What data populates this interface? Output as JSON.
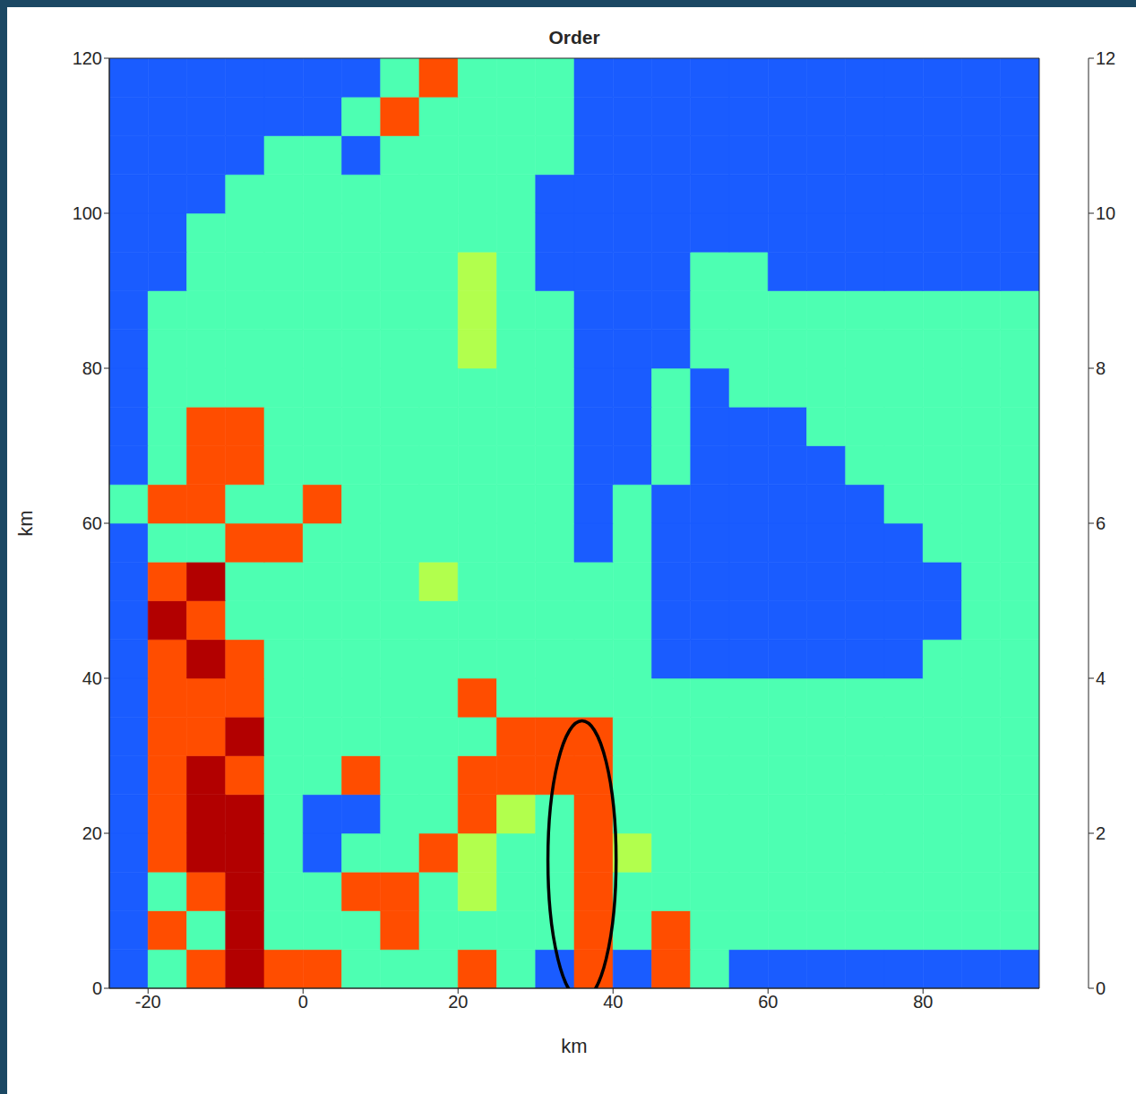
{
  "chart_data": {
    "type": "heatmap",
    "title": "Order",
    "x_label": "km",
    "y_label": "km",
    "xlim": [
      -25,
      95
    ],
    "ylim": [
      0,
      120
    ],
    "xticks": [
      -20,
      0,
      20,
      40,
      60,
      80
    ],
    "yticks": [
      0,
      20,
      40,
      60,
      80,
      100,
      120
    ],
    "x_edges": [
      -25,
      -20,
      -15,
      -10,
      -5,
      0,
      5,
      10,
      15,
      20,
      25,
      30,
      35,
      40,
      45,
      50,
      55,
      60,
      65,
      70,
      75,
      80,
      85,
      90,
      95
    ],
    "y_edges": [
      0,
      5,
      10,
      15,
      20,
      25,
      30,
      35,
      40,
      45,
      50,
      55,
      60,
      65,
      70,
      75,
      80,
      85,
      90,
      95,
      100,
      105,
      110,
      115,
      120
    ],
    "cells": [
      [
        2.5,
        5.5,
        9.5,
        11.5,
        9.5,
        9.5,
        5.5,
        5.5,
        5.5,
        9.5,
        5.5,
        2.5,
        9.5,
        2.5,
        9.5,
        5.5,
        2.5,
        2.5,
        2.5,
        2.5,
        2.5,
        2.5,
        2.5,
        2.5
      ],
      [
        2.5,
        9.5,
        5.5,
        11.5,
        5.5,
        5.5,
        5.5,
        9.5,
        5.5,
        5.5,
        5.5,
        5.5,
        9.5,
        5.5,
        9.5,
        5.5,
        5.5,
        5.5,
        5.5,
        5.5,
        5.5,
        5.5,
        5.5,
        5.5
      ],
      [
        2.5,
        5.5,
        9.5,
        11.5,
        5.5,
        5.5,
        9.5,
        9.5,
        5.5,
        6.5,
        5.5,
        5.5,
        9.5,
        5.5,
        5.5,
        5.5,
        5.5,
        5.5,
        5.5,
        5.5,
        5.5,
        5.5,
        5.5,
        5.5
      ],
      [
        2.5,
        9.5,
        11.5,
        11.5,
        5.5,
        2.5,
        5.5,
        5.5,
        9.5,
        6.5,
        5.5,
        5.5,
        9.5,
        6.5,
        5.5,
        5.5,
        5.5,
        5.5,
        5.5,
        5.5,
        5.5,
        5.5,
        5.5,
        5.5
      ],
      [
        2.5,
        9.5,
        11.5,
        11.5,
        5.5,
        2.5,
        2.5,
        5.5,
        5.5,
        9.5,
        6.5,
        5.5,
        9.5,
        5.5,
        5.5,
        5.5,
        5.5,
        5.5,
        5.5,
        5.5,
        5.5,
        5.5,
        5.5,
        5.5
      ],
      [
        2.5,
        9.5,
        11.5,
        9.5,
        5.5,
        5.5,
        9.5,
        5.5,
        5.5,
        9.5,
        9.5,
        9.5,
        9.5,
        5.5,
        5.5,
        5.5,
        5.5,
        5.5,
        5.5,
        5.5,
        5.5,
        5.5,
        5.5,
        5.5
      ],
      [
        2.5,
        9.5,
        9.5,
        11.5,
        5.5,
        5.5,
        5.5,
        5.5,
        5.5,
        5.5,
        9.5,
        9.5,
        9.5,
        5.5,
        5.5,
        5.5,
        5.5,
        5.5,
        5.5,
        5.5,
        5.5,
        5.5,
        5.5,
        5.5
      ],
      [
        2.5,
        9.5,
        9.5,
        9.5,
        5.5,
        5.5,
        5.5,
        5.5,
        5.5,
        9.5,
        5.5,
        5.5,
        5.5,
        5.5,
        5.5,
        5.5,
        5.5,
        5.5,
        5.5,
        5.5,
        5.5,
        5.5,
        5.5,
        5.5
      ],
      [
        2.5,
        9.5,
        11.5,
        9.5,
        5.5,
        5.5,
        5.5,
        5.5,
        5.5,
        5.5,
        5.5,
        5.5,
        5.5,
        5.5,
        2.5,
        2.5,
        2.5,
        2.5,
        2.5,
        2.5,
        2.5,
        5.5,
        5.5,
        5.5
      ],
      [
        2.5,
        11.5,
        9.5,
        5.5,
        5.5,
        5.5,
        5.5,
        5.5,
        5.5,
        5.5,
        5.5,
        5.5,
        5.5,
        5.5,
        2.5,
        2.5,
        2.5,
        2.5,
        2.5,
        2.5,
        2.5,
        2.5,
        5.5,
        5.5
      ],
      [
        2.5,
        9.5,
        11.5,
        5.5,
        5.5,
        5.5,
        5.5,
        5.5,
        6.5,
        5.5,
        5.5,
        5.5,
        5.5,
        5.5,
        2.5,
        2.5,
        2.5,
        2.5,
        2.5,
        2.5,
        2.5,
        2.5,
        5.5,
        5.5
      ],
      [
        2.5,
        5.5,
        5.5,
        9.5,
        9.5,
        5.5,
        5.5,
        5.5,
        5.5,
        5.5,
        5.5,
        5.5,
        2.5,
        5.5,
        2.5,
        2.5,
        2.5,
        2.5,
        2.5,
        2.5,
        2.5,
        5.5,
        5.5,
        5.5
      ],
      [
        5.5,
        9.5,
        9.5,
        5.5,
        5.5,
        9.5,
        5.5,
        5.5,
        5.5,
        5.5,
        5.5,
        5.5,
        2.5,
        5.5,
        2.5,
        2.5,
        2.5,
        2.5,
        2.5,
        2.5,
        5.5,
        5.5,
        5.5,
        5.5
      ],
      [
        2.5,
        5.5,
        9.5,
        9.5,
        5.5,
        5.5,
        5.5,
        5.5,
        5.5,
        5.5,
        5.5,
        5.5,
        2.5,
        2.5,
        5.5,
        2.5,
        2.5,
        2.5,
        2.5,
        5.5,
        5.5,
        5.5,
        5.5,
        5.5
      ],
      [
        2.5,
        5.5,
        9.5,
        9.5,
        5.5,
        5.5,
        5.5,
        5.5,
        5.5,
        5.5,
        5.5,
        5.5,
        2.5,
        2.5,
        5.5,
        2.5,
        2.5,
        2.5,
        5.5,
        5.5,
        5.5,
        5.5,
        5.5,
        5.5
      ],
      [
        2.5,
        5.5,
        5.5,
        5.5,
        5.5,
        5.5,
        5.5,
        5.5,
        5.5,
        5.5,
        5.5,
        5.5,
        2.5,
        2.5,
        5.5,
        2.5,
        5.5,
        5.5,
        5.5,
        5.5,
        5.5,
        5.5,
        5.5,
        5.5
      ],
      [
        2.5,
        5.5,
        5.5,
        5.5,
        5.5,
        5.5,
        5.5,
        5.5,
        5.5,
        6.5,
        5.5,
        5.5,
        2.5,
        2.5,
        2.5,
        5.5,
        5.5,
        5.5,
        5.5,
        5.5,
        5.5,
        5.5,
        5.5,
        5.5
      ],
      [
        2.5,
        5.5,
        5.5,
        5.5,
        5.5,
        5.5,
        5.5,
        5.5,
        5.5,
        6.5,
        5.5,
        5.5,
        2.5,
        2.5,
        2.5,
        5.5,
        5.5,
        5.5,
        5.5,
        5.5,
        5.5,
        5.5,
        5.5,
        5.5
      ],
      [
        2.5,
        2.5,
        5.5,
        5.5,
        5.5,
        5.5,
        5.5,
        5.5,
        5.5,
        6.5,
        5.5,
        2.5,
        2.5,
        2.5,
        2.5,
        5.5,
        5.5,
        2.5,
        2.5,
        2.5,
        2.5,
        2.5,
        2.5,
        2.5
      ],
      [
        2.5,
        2.5,
        5.5,
        5.5,
        5.5,
        5.5,
        5.5,
        5.5,
        5.5,
        5.5,
        5.5,
        2.5,
        2.5,
        2.5,
        2.5,
        2.5,
        2.5,
        2.5,
        2.5,
        2.5,
        2.5,
        2.5,
        2.5,
        2.5
      ],
      [
        2.5,
        2.5,
        2.5,
        5.5,
        5.5,
        5.5,
        5.5,
        5.5,
        5.5,
        5.5,
        5.5,
        2.5,
        2.5,
        2.5,
        2.5,
        2.5,
        2.5,
        2.5,
        2.5,
        2.5,
        2.5,
        2.5,
        2.5,
        2.5
      ],
      [
        2.5,
        2.5,
        2.5,
        2.5,
        5.5,
        5.5,
        2.5,
        5.5,
        5.5,
        5.5,
        5.5,
        5.5,
        2.5,
        2.5,
        2.5,
        2.5,
        2.5,
        2.5,
        2.5,
        2.5,
        2.5,
        2.5,
        2.5,
        2.5
      ],
      [
        2.5,
        2.5,
        2.5,
        2.5,
        2.5,
        2.5,
        5.5,
        9.5,
        5.5,
        5.5,
        5.5,
        5.5,
        2.5,
        2.5,
        2.5,
        2.5,
        2.5,
        2.5,
        2.5,
        2.5,
        2.5,
        2.5,
        2.5,
        2.5
      ],
      [
        2.5,
        2.5,
        2.5,
        2.5,
        2.5,
        2.5,
        2.5,
        5.5,
        9.5,
        5.5,
        5.5,
        5.5,
        2.5,
        2.5,
        2.5,
        2.5,
        2.5,
        2.5,
        2.5,
        2.5,
        2.5,
        2.5,
        2.5,
        2.5
      ]
    ],
    "colorbar": {
      "range": [
        0,
        12
      ],
      "ticks": [
        0,
        2,
        4,
        6,
        8,
        10,
        12
      ],
      "colors": [
        "#00007f",
        "#0000f5",
        "#1a5cff",
        "#00a8ff",
        "#00f0ff",
        "#4dffb2",
        "#b2ff4d",
        "#ffff00",
        "#ffa800",
        "#ff4d00",
        "#ff0000",
        "#b20000"
      ]
    },
    "annotations": [
      {
        "type": "ellipse",
        "x": 36,
        "y": 16.5,
        "rx": 4.4,
        "ry": 18,
        "color": "#000000"
      }
    ]
  }
}
